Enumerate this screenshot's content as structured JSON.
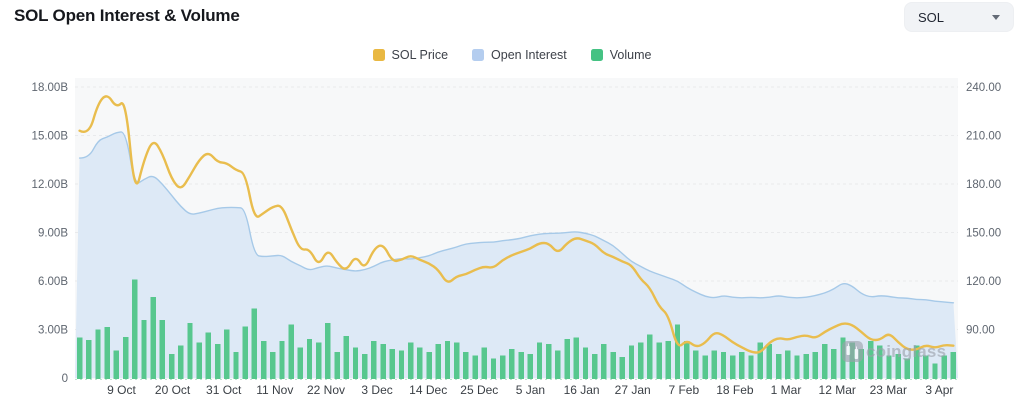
{
  "header": {
    "title": "SOL Open Interest & Volume",
    "symbol_select": {
      "value": "SOL"
    }
  },
  "legend": [
    {
      "label": "SOL Price",
      "color": "#E9B842"
    },
    {
      "label": "Open Interest",
      "color": "#B4CDEF"
    },
    {
      "label": "Volume",
      "color": "#45C283"
    }
  ],
  "watermark": {
    "text": "coinglass"
  },
  "chart_data": {
    "type": "mixed",
    "x": {
      "start": "29 Sep",
      "end": "6 Apr",
      "step_days": 2,
      "total_days": 190
    },
    "x_ticks": [
      {
        "label": "9 Oct",
        "day": 10
      },
      {
        "label": "20 Oct",
        "day": 21
      },
      {
        "label": "31 Oct",
        "day": 32
      },
      {
        "label": "11 Nov",
        "day": 43
      },
      {
        "label": "22 Nov",
        "day": 54
      },
      {
        "label": "3 Dec",
        "day": 65
      },
      {
        "label": "14 Dec",
        "day": 76
      },
      {
        "label": "25 Dec",
        "day": 87
      },
      {
        "label": "5 Jan",
        "day": 98
      },
      {
        "label": "16 Jan",
        "day": 109
      },
      {
        "label": "27 Jan",
        "day": 120
      },
      {
        "label": "7 Feb",
        "day": 131
      },
      {
        "label": "18 Feb",
        "day": 142
      },
      {
        "label": "1 Mar",
        "day": 153
      },
      {
        "label": "12 Mar",
        "day": 164
      },
      {
        "label": "23 Mar",
        "day": 175
      },
      {
        "label": "3 Apr",
        "day": 186
      }
    ],
    "left_axis": {
      "unit": "B",
      "min": 0,
      "max": 18,
      "ticks": [
        {
          "label": "18.00B",
          "value": 18
        },
        {
          "label": "15.00B",
          "value": 15
        },
        {
          "label": "12.00B",
          "value": 12
        },
        {
          "label": "9.00B",
          "value": 9
        },
        {
          "label": "6.00B",
          "value": 6
        },
        {
          "label": "3.00B",
          "value": 3
        },
        {
          "label": "0",
          "value": 0
        }
      ]
    },
    "right_axis": {
      "min": 60,
      "max": 240,
      "ticks": [
        {
          "label": "240.00",
          "value": 240
        },
        {
          "label": "210.00",
          "value": 210
        },
        {
          "label": "180.00",
          "value": 180
        },
        {
          "label": "150.00",
          "value": 150
        },
        {
          "label": "120.00",
          "value": 120
        },
        {
          "label": "90.00",
          "value": 90
        }
      ]
    },
    "series": [
      {
        "name": "SOL Price",
        "type": "line",
        "axis": "right",
        "color": "#E9BD4E",
        "values": [
          213,
          210,
          230,
          236,
          227,
          232.5,
          172,
          195,
          208,
          199,
          183,
          176,
          185,
          195,
          200,
          193.5,
          193,
          188.5,
          187,
          158,
          162,
          166,
          167,
          152,
          139,
          140,
          129,
          140,
          131,
          126,
          136,
          127,
          140,
          143,
          132,
          133,
          136,
          133,
          131,
          127,
          118,
          123,
          124,
          127,
          129,
          128,
          133,
          136,
          138,
          140,
          143.5,
          143.5,
          137,
          143.5,
          147,
          145,
          143,
          137,
          135,
          132,
          130,
          121,
          116,
          104,
          99,
          78,
          83.5,
          79,
          81.5,
          88.5,
          86.5,
          82,
          79,
          76,
          75.5,
          82,
          85,
          83.5,
          85.5,
          86.5,
          84.5,
          88.5,
          91.5,
          94,
          93,
          88.5,
          83.5,
          83.5,
          88,
          82,
          77.5,
          77.5,
          80.5,
          78.5,
          80.5,
          80
        ]
      },
      {
        "name": "Open Interest",
        "type": "area",
        "axis": "left",
        "color": "#A6C9E8",
        "fill": "#DDE9F6",
        "values": [
          13.6,
          13.6,
          14.7,
          14.9,
          15.2,
          15.25,
          11.9,
          12.3,
          12.55,
          12.0,
          11.3,
          10.6,
          10.1,
          10.2,
          10.35,
          10.5,
          10.55,
          10.55,
          10.5,
          7.6,
          7.5,
          7.55,
          7.6,
          7.2,
          6.95,
          6.65,
          6.85,
          6.95,
          6.8,
          6.7,
          6.6,
          6.7,
          6.9,
          7.2,
          7.3,
          7.4,
          7.35,
          7.45,
          7.55,
          7.8,
          7.95,
          8.1,
          8.3,
          8.35,
          8.4,
          8.4,
          8.5,
          8.55,
          8.65,
          8.8,
          8.9,
          8.95,
          8.95,
          9.0,
          9.05,
          8.95,
          8.8,
          8.5,
          8.2,
          7.7,
          7.2,
          6.9,
          6.6,
          6.4,
          6.2,
          6.0,
          5.6,
          5.3,
          5.05,
          4.95,
          5.1,
          5.0,
          4.95,
          5.0,
          4.95,
          5.0,
          5.1,
          5.0,
          4.95,
          5.0,
          5.1,
          5.25,
          5.5,
          5.9,
          5.7,
          5.2,
          5.0,
          5.1,
          5.05,
          4.95,
          4.95,
          4.85,
          4.85,
          4.75,
          4.7,
          4.65
        ]
      },
      {
        "name": "Volume",
        "type": "bar",
        "axis": "left",
        "color": "#57C78E",
        "values": [
          2.5,
          2.35,
          3.0,
          3.15,
          1.7,
          2.55,
          6.1,
          3.6,
          5.0,
          3.6,
          1.5,
          2.0,
          3.4,
          2.2,
          2.8,
          2.1,
          3.0,
          1.6,
          3.2,
          4.3,
          2.3,
          1.6,
          2.3,
          3.3,
          1.9,
          2.4,
          2.2,
          3.4,
          1.6,
          2.6,
          1.9,
          1.5,
          2.3,
          2.1,
          1.8,
          1.7,
          2.2,
          1.9,
          1.6,
          2.1,
          2.3,
          2.2,
          1.6,
          1.4,
          1.9,
          1.2,
          1.4,
          1.8,
          1.6,
          1.5,
          2.2,
          2.1,
          1.7,
          2.4,
          2.5,
          1.9,
          1.5,
          2.1,
          1.6,
          1.3,
          2.0,
          2.2,
          2.7,
          2.2,
          2.3,
          3.3,
          2.3,
          1.7,
          1.4,
          1.7,
          1.6,
          1.4,
          1.6,
          1.4,
          2.2,
          2.1,
          1.5,
          1.7,
          1.4,
          1.5,
          1.6,
          2.1,
          1.8,
          2.5,
          2.2,
          1.8,
          2.3,
          2.0,
          1.4,
          1.5,
          1.2,
          2.0,
          1.4,
          0.9,
          1.4,
          1.6
        ]
      }
    ],
    "style": {
      "plot_bg": "#f7f8f9",
      "grid_color": "#e9eaec",
      "baseline_color": "#bfe3d2",
      "axis_text_color": "#5f6670",
      "x_text_color": "#3a3f45"
    }
  }
}
